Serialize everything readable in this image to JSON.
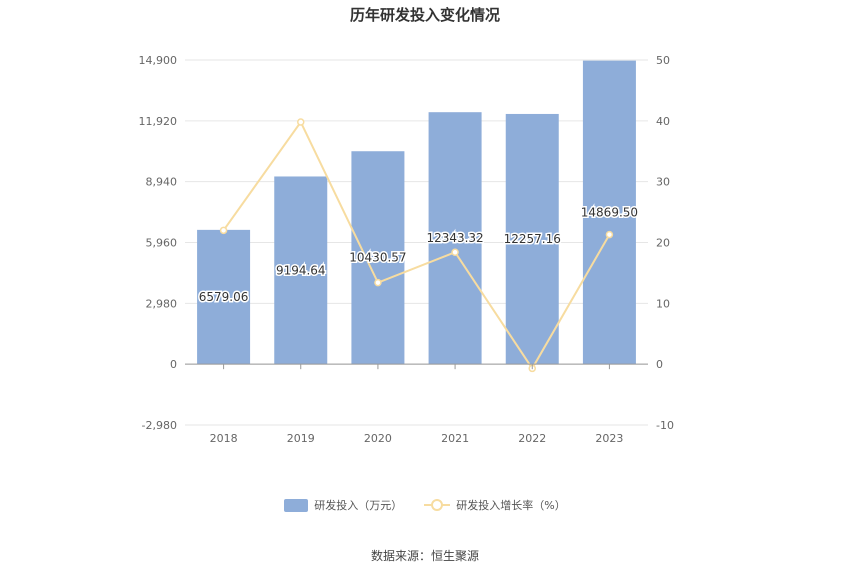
{
  "chart_data": {
    "title": "历年研发投入变化情况",
    "type": "bar",
    "categories": [
      "2018",
      "2019",
      "2020",
      "2021",
      "2022",
      "2023"
    ],
    "series": [
      {
        "name": "研发投入（万元）",
        "type": "bar",
        "axis": "left",
        "values": [
          6579.06,
          9194.64,
          10430.57,
          12343.32,
          12257.16,
          14869.5
        ],
        "labels": [
          "6579.06",
          "9194.64",
          "10430.57",
          "12343.32",
          "12257.16",
          "14869.50"
        ],
        "color": "#8eadd9"
      },
      {
        "name": "研发投入增长率（%）",
        "type": "line",
        "axis": "right",
        "values": [
          22.0,
          39.8,
          13.4,
          18.4,
          -0.7,
          21.3
        ],
        "color": "#f7dca0"
      }
    ],
    "y_left": {
      "min": -2980,
      "max": 14900,
      "ticks": [
        "-2,980",
        "0",
        "2,980",
        "5,960",
        "8,940",
        "11,920",
        "14,900"
      ]
    },
    "y_right": {
      "min": -10,
      "max": 50,
      "ticks": [
        "-10",
        "0",
        "10",
        "20",
        "30",
        "40",
        "50"
      ]
    },
    "grid": true,
    "legend_position": "bottom"
  },
  "source": "数据来源：恒生聚源"
}
